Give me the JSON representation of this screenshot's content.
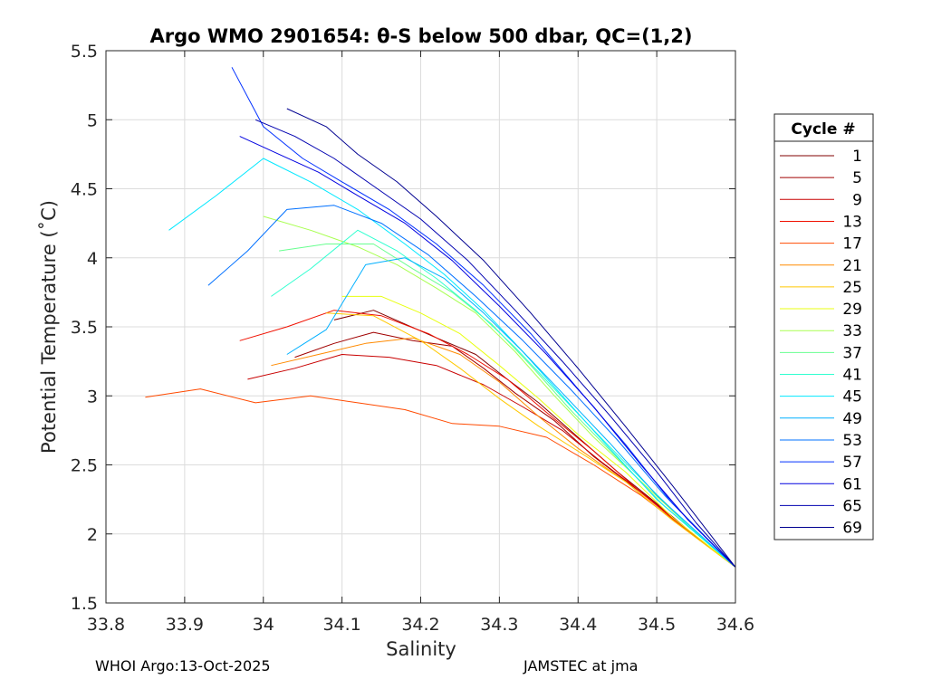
{
  "chart_data": {
    "type": "line",
    "title": "Argo WMO 2901654: θ-S below 500 dbar,  QC=(1,2)",
    "xlabel": "Salinity",
    "ylabel": "Potential Temperature (˚C)",
    "xlim": [
      33.8,
      34.6
    ],
    "ylim": [
      1.5,
      5.5
    ],
    "xticks": [
      33.8,
      33.9,
      34,
      34.1,
      34.2,
      34.3,
      34.4,
      34.5,
      34.6
    ],
    "xtick_labels": [
      "33.8",
      "33.9",
      "34",
      "34.1",
      "34.2",
      "34.3",
      "34.4",
      "34.5",
      "34.6"
    ],
    "yticks": [
      1.5,
      2,
      2.5,
      3,
      3.5,
      4,
      4.5,
      5,
      5.5
    ],
    "ytick_labels": [
      "1.5",
      "2",
      "2.5",
      "3",
      "3.5",
      "4",
      "4.5",
      "5",
      "5.5"
    ],
    "grid": true,
    "legend": {
      "title": "Cycle #",
      "placement": "outside-right",
      "entries": [
        "1",
        "5",
        "9",
        "13",
        "17",
        "21",
        "25",
        "29",
        "33",
        "37",
        "41",
        "45",
        "49",
        "53",
        "57",
        "61",
        "65",
        "69"
      ]
    },
    "colormap": "jet",
    "series": [
      {
        "name": "1",
        "color": "#800000",
        "points": [
          [
            34.09,
            3.55
          ],
          [
            34.14,
            3.62
          ],
          [
            34.18,
            3.52
          ],
          [
            34.22,
            3.42
          ],
          [
            34.27,
            3.3
          ],
          [
            34.31,
            3.12
          ],
          [
            34.35,
            2.95
          ],
          [
            34.4,
            2.7
          ],
          [
            34.45,
            2.45
          ],
          [
            34.5,
            2.22
          ],
          [
            34.55,
            1.98
          ],
          [
            34.6,
            1.76
          ]
        ]
      },
      {
        "name": "5",
        "color": "#a00000",
        "points": [
          [
            34.04,
            3.28
          ],
          [
            34.09,
            3.38
          ],
          [
            34.14,
            3.46
          ],
          [
            34.19,
            3.4
          ],
          [
            34.24,
            3.36
          ],
          [
            34.28,
            3.2
          ],
          [
            34.32,
            3.02
          ],
          [
            34.37,
            2.82
          ],
          [
            34.42,
            2.56
          ],
          [
            34.48,
            2.3
          ],
          [
            34.54,
            2.02
          ],
          [
            34.6,
            1.76
          ]
        ]
      },
      {
        "name": "9",
        "color": "#c80000",
        "points": [
          [
            33.98,
            3.12
          ],
          [
            34.04,
            3.2
          ],
          [
            34.1,
            3.3
          ],
          [
            34.16,
            3.28
          ],
          [
            34.22,
            3.22
          ],
          [
            34.28,
            3.08
          ],
          [
            34.33,
            2.92
          ],
          [
            34.38,
            2.75
          ],
          [
            34.43,
            2.52
          ],
          [
            34.49,
            2.26
          ],
          [
            34.55,
            1.98
          ],
          [
            34.6,
            1.76
          ]
        ]
      },
      {
        "name": "13",
        "color": "#f01000",
        "points": [
          [
            33.97,
            3.4
          ],
          [
            34.03,
            3.5
          ],
          [
            34.09,
            3.62
          ],
          [
            34.15,
            3.58
          ],
          [
            34.21,
            3.45
          ],
          [
            34.26,
            3.3
          ],
          [
            34.31,
            3.12
          ],
          [
            34.36,
            2.88
          ],
          [
            34.42,
            2.6
          ],
          [
            34.48,
            2.3
          ],
          [
            34.54,
            2.02
          ],
          [
            34.6,
            1.76
          ]
        ]
      },
      {
        "name": "17",
        "color": "#ff4a00",
        "points": [
          [
            33.85,
            2.99
          ],
          [
            33.92,
            3.05
          ],
          [
            33.99,
            2.95
          ],
          [
            34.06,
            3.0
          ],
          [
            34.12,
            2.95
          ],
          [
            34.18,
            2.9
          ],
          [
            34.24,
            2.8
          ],
          [
            34.3,
            2.78
          ],
          [
            34.36,
            2.7
          ],
          [
            34.42,
            2.5
          ],
          [
            34.48,
            2.28
          ],
          [
            34.54,
            2.02
          ],
          [
            34.6,
            1.76
          ]
        ]
      },
      {
        "name": "21",
        "color": "#ff8a00",
        "points": [
          [
            34.01,
            3.22
          ],
          [
            34.07,
            3.3
          ],
          [
            34.13,
            3.38
          ],
          [
            34.19,
            3.42
          ],
          [
            34.25,
            3.3
          ],
          [
            34.3,
            3.1
          ],
          [
            34.35,
            2.85
          ],
          [
            34.4,
            2.62
          ],
          [
            34.46,
            2.38
          ],
          [
            34.52,
            2.1
          ],
          [
            34.6,
            1.76
          ]
        ]
      },
      {
        "name": "25",
        "color": "#ffc800",
        "points": [
          [
            34.08,
            3.6
          ],
          [
            34.14,
            3.58
          ],
          [
            34.2,
            3.4
          ],
          [
            34.25,
            3.2
          ],
          [
            34.3,
            2.98
          ],
          [
            34.35,
            2.78
          ],
          [
            34.4,
            2.6
          ],
          [
            34.46,
            2.38
          ],
          [
            34.52,
            2.1
          ],
          [
            34.6,
            1.76
          ]
        ]
      },
      {
        "name": "29",
        "color": "#e8ff10",
        "points": [
          [
            34.1,
            3.72
          ],
          [
            34.15,
            3.72
          ],
          [
            34.2,
            3.6
          ],
          [
            34.25,
            3.45
          ],
          [
            34.3,
            3.22
          ],
          [
            34.35,
            2.98
          ],
          [
            34.4,
            2.72
          ],
          [
            34.46,
            2.45
          ],
          [
            34.52,
            2.12
          ],
          [
            34.6,
            1.76
          ]
        ]
      },
      {
        "name": "33",
        "color": "#a8ff50",
        "points": [
          [
            34.0,
            4.3
          ],
          [
            34.06,
            4.2
          ],
          [
            34.12,
            4.08
          ],
          [
            34.17,
            3.95
          ],
          [
            34.22,
            3.78
          ],
          [
            34.27,
            3.6
          ],
          [
            34.32,
            3.32
          ],
          [
            34.37,
            3.0
          ],
          [
            34.42,
            2.7
          ],
          [
            34.48,
            2.38
          ],
          [
            34.54,
            2.06
          ],
          [
            34.6,
            1.76
          ]
        ]
      },
      {
        "name": "37",
        "color": "#68ff90",
        "points": [
          [
            34.02,
            4.05
          ],
          [
            34.08,
            4.1
          ],
          [
            34.14,
            4.1
          ],
          [
            34.19,
            3.92
          ],
          [
            34.24,
            3.75
          ],
          [
            34.29,
            3.52
          ],
          [
            34.34,
            3.22
          ],
          [
            34.39,
            2.9
          ],
          [
            34.45,
            2.55
          ],
          [
            34.51,
            2.2
          ],
          [
            34.6,
            1.76
          ]
        ]
      },
      {
        "name": "41",
        "color": "#30ffd0",
        "points": [
          [
            34.01,
            3.72
          ],
          [
            34.06,
            3.92
          ],
          [
            34.12,
            4.2
          ],
          [
            34.17,
            4.05
          ],
          [
            34.22,
            3.85
          ],
          [
            34.27,
            3.62
          ],
          [
            34.32,
            3.35
          ],
          [
            34.37,
            3.05
          ],
          [
            34.42,
            2.75
          ],
          [
            34.48,
            2.4
          ],
          [
            34.54,
            2.06
          ],
          [
            34.6,
            1.76
          ]
        ]
      },
      {
        "name": "45",
        "color": "#00e8ff",
        "points": [
          [
            33.88,
            4.2
          ],
          [
            33.94,
            4.45
          ],
          [
            34.0,
            4.72
          ],
          [
            34.06,
            4.55
          ],
          [
            34.12,
            4.35
          ],
          [
            34.18,
            4.1
          ],
          [
            34.23,
            3.88
          ],
          [
            34.28,
            3.62
          ],
          [
            34.33,
            3.32
          ],
          [
            34.38,
            3.0
          ],
          [
            34.44,
            2.62
          ],
          [
            34.5,
            2.25
          ],
          [
            34.6,
            1.76
          ]
        ]
      },
      {
        "name": "49",
        "color": "#00b0ff",
        "points": [
          [
            34.03,
            3.3
          ],
          [
            34.08,
            3.48
          ],
          [
            34.13,
            3.95
          ],
          [
            34.18,
            4.0
          ],
          [
            34.23,
            3.85
          ],
          [
            34.28,
            3.6
          ],
          [
            34.33,
            3.32
          ],
          [
            34.38,
            3.02
          ],
          [
            34.44,
            2.66
          ],
          [
            34.5,
            2.28
          ],
          [
            34.6,
            1.76
          ]
        ]
      },
      {
        "name": "53",
        "color": "#0070ff",
        "points": [
          [
            33.93,
            3.8
          ],
          [
            33.98,
            4.05
          ],
          [
            34.03,
            4.35
          ],
          [
            34.09,
            4.38
          ],
          [
            34.15,
            4.25
          ],
          [
            34.21,
            4.02
          ],
          [
            34.27,
            3.72
          ],
          [
            34.33,
            3.4
          ],
          [
            34.39,
            3.05
          ],
          [
            34.45,
            2.68
          ],
          [
            34.51,
            2.28
          ],
          [
            34.6,
            1.76
          ]
        ]
      },
      {
        "name": "57",
        "color": "#0030ff",
        "points": [
          [
            33.96,
            5.38
          ],
          [
            34.0,
            4.95
          ],
          [
            34.05,
            4.72
          ],
          [
            34.1,
            4.55
          ],
          [
            34.16,
            4.35
          ],
          [
            34.22,
            4.1
          ],
          [
            34.28,
            3.8
          ],
          [
            34.34,
            3.45
          ],
          [
            34.4,
            3.05
          ],
          [
            34.46,
            2.65
          ],
          [
            34.52,
            2.22
          ],
          [
            34.6,
            1.76
          ]
        ]
      },
      {
        "name": "61",
        "color": "#0000e0",
        "points": [
          [
            33.97,
            4.88
          ],
          [
            34.02,
            4.75
          ],
          [
            34.07,
            4.62
          ],
          [
            34.12,
            4.45
          ],
          [
            34.18,
            4.25
          ],
          [
            34.24,
            3.98
          ],
          [
            34.3,
            3.65
          ],
          [
            34.36,
            3.3
          ],
          [
            34.42,
            2.92
          ],
          [
            34.48,
            2.5
          ],
          [
            34.54,
            2.1
          ],
          [
            34.6,
            1.76
          ]
        ]
      },
      {
        "name": "65",
        "color": "#0000b0",
        "points": [
          [
            33.99,
            5.0
          ],
          [
            34.04,
            4.88
          ],
          [
            34.09,
            4.72
          ],
          [
            34.14,
            4.52
          ],
          [
            34.2,
            4.28
          ],
          [
            34.26,
            3.98
          ],
          [
            34.32,
            3.62
          ],
          [
            34.38,
            3.25
          ],
          [
            34.44,
            2.86
          ],
          [
            34.5,
            2.45
          ],
          [
            34.55,
            2.08
          ],
          [
            34.6,
            1.76
          ]
        ]
      },
      {
        "name": "69",
        "color": "#000090",
        "points": [
          [
            34.03,
            5.08
          ],
          [
            34.08,
            4.95
          ],
          [
            34.12,
            4.75
          ],
          [
            34.17,
            4.55
          ],
          [
            34.22,
            4.3
          ],
          [
            34.28,
            3.98
          ],
          [
            34.34,
            3.6
          ],
          [
            34.4,
            3.2
          ],
          [
            34.46,
            2.78
          ],
          [
            34.52,
            2.35
          ],
          [
            34.6,
            1.76
          ]
        ]
      }
    ]
  },
  "footer": {
    "left": "WHOI Argo:13-Oct-2025",
    "right": "JAMSTEC at jma"
  }
}
